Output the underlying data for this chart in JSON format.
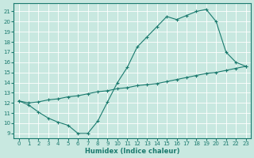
{
  "line1_x": [
    0,
    1,
    2,
    3,
    4,
    5,
    6,
    7,
    8,
    9,
    10,
    11,
    12,
    13,
    14,
    15,
    16,
    17,
    18,
    19,
    20,
    21,
    22,
    23
  ],
  "line1_y": [
    12.2,
    11.8,
    11.1,
    10.5,
    10.1,
    9.8,
    9.0,
    9.0,
    10.2,
    12.1,
    14.0,
    15.5,
    17.5,
    18.5,
    19.5,
    20.5,
    20.2,
    20.6,
    21.0,
    21.2,
    20.0,
    17.0,
    16.0,
    15.6
  ],
  "line2_x": [
    0,
    1,
    2,
    3,
    4,
    5,
    6,
    7,
    8,
    9,
    10,
    11,
    12,
    13,
    14,
    15,
    16,
    17,
    18,
    19,
    20,
    21,
    22,
    23
  ],
  "line2_y": [
    12.2,
    12.0,
    12.1,
    12.3,
    12.4,
    12.6,
    12.7,
    12.9,
    13.1,
    13.2,
    13.4,
    13.5,
    13.7,
    13.8,
    13.9,
    14.1,
    14.3,
    14.5,
    14.7,
    14.9,
    15.0,
    15.2,
    15.4,
    15.6
  ],
  "line_color": "#1a7a6e",
  "bg_color": "#c8e8e0",
  "grid_color": "#ffffff",
  "xlabel": "Humidex (Indice chaleur)",
  "xlim": [
    -0.5,
    23.5
  ],
  "ylim": [
    8.5,
    21.8
  ],
  "yticks": [
    9,
    10,
    11,
    12,
    13,
    14,
    15,
    16,
    17,
    18,
    19,
    20,
    21
  ],
  "xticks": [
    0,
    1,
    2,
    3,
    4,
    5,
    6,
    7,
    8,
    9,
    10,
    11,
    12,
    13,
    14,
    15,
    16,
    17,
    18,
    19,
    20,
    21,
    22,
    23
  ],
  "tick_fontsize": 5,
  "xlabel_fontsize": 6
}
